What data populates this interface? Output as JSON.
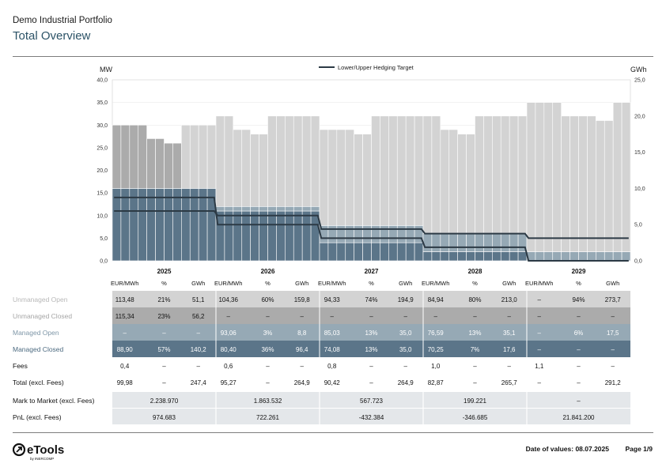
{
  "header": {
    "subtitle": "Demo Industrial Portfolio",
    "title": "Total Overview"
  },
  "footer": {
    "date": "Date of values: 08.07.2025",
    "page": "Page 1/9",
    "logo_text": "eTools",
    "logo_sub": "by INERCOMP"
  },
  "colors": {
    "unmanaged_open": "#d3d3d3",
    "unmanaged_closed": "#ababab",
    "managed_open": "#96a9b5",
    "managed_closed": "#5b7589",
    "hedge_line": "#2c3a45",
    "title": "#2c5367"
  },
  "chart_data": {
    "type": "bar",
    "stacked": true,
    "title": "",
    "ylabel_left": "MW",
    "ylabel_right": "GWh",
    "ylim_left": [
      0,
      40
    ],
    "ylim_right": [
      0,
      25
    ],
    "yticks_left": [
      "0,0",
      "5,0",
      "10,0",
      "15,0",
      "20,0",
      "25,0",
      "30,0",
      "35,0",
      "40,0"
    ],
    "yticks_right": [
      "0,0",
      "5,0",
      "10,0",
      "15,0",
      "20,0",
      "25,0"
    ],
    "legend": {
      "label": "Lower/Upper Hedging Target",
      "placement": "top-center"
    },
    "years": [
      "2025",
      "2026",
      "2027",
      "2028",
      "2029"
    ],
    "months_per_year": 12,
    "series": [
      {
        "name": "Managed Closed",
        "values": [
          16,
          16,
          16,
          16,
          16,
          16,
          16,
          16,
          16,
          16,
          16,
          16,
          11,
          11,
          11,
          11,
          11,
          11,
          11,
          11,
          11,
          11,
          11,
          11,
          4,
          4,
          4,
          4,
          4,
          4,
          4,
          4,
          4,
          4,
          4,
          4,
          2,
          2,
          2,
          2,
          2,
          2,
          2,
          2,
          2,
          2,
          2,
          2,
          0,
          0,
          0,
          0,
          0,
          0,
          0,
          0,
          0,
          0,
          0,
          0
        ]
      },
      {
        "name": "Managed Open",
        "values": [
          0,
          0,
          0,
          0,
          0,
          0,
          0,
          0,
          0,
          0,
          0,
          0,
          1,
          1,
          1,
          1,
          1,
          1,
          1,
          1,
          1,
          1,
          1,
          1,
          3.8,
          3.8,
          3.8,
          3.8,
          3.8,
          3.8,
          3.8,
          3.8,
          3.8,
          3.8,
          3.8,
          3.8,
          4,
          4,
          4,
          4,
          4,
          4,
          4,
          4,
          4,
          4,
          4,
          4,
          2,
          2,
          2,
          2,
          2,
          2,
          2,
          2,
          2,
          2,
          2,
          2
        ]
      },
      {
        "name": "Unmanaged Closed",
        "values": [
          14,
          14,
          14,
          14,
          11,
          11,
          10,
          10,
          0,
          0,
          0,
          0,
          0,
          0,
          0,
          0,
          0,
          0,
          0,
          0,
          0,
          0,
          0,
          0,
          0,
          0,
          0,
          0,
          0,
          0,
          0,
          0,
          0,
          0,
          0,
          0,
          0,
          0,
          0,
          0,
          0,
          0,
          0,
          0,
          0,
          0,
          0,
          0,
          0,
          0,
          0,
          0,
          0,
          0,
          0,
          0,
          0,
          0,
          0,
          0
        ]
      },
      {
        "name": "Unmanaged Open",
        "values": [
          0,
          0,
          0,
          0,
          0,
          0,
          0,
          0,
          14,
          14,
          14,
          14,
          20,
          20,
          17,
          17,
          16,
          16,
          20,
          20,
          20,
          20,
          20,
          20,
          21.2,
          21.2,
          21.2,
          21.2,
          20.2,
          20.2,
          24.2,
          24.2,
          24.2,
          24.2,
          24.2,
          24.2,
          26,
          26,
          23,
          23,
          22,
          22,
          26,
          26,
          26,
          26,
          26,
          26,
          33,
          33,
          33,
          33,
          30,
          30,
          30,
          30,
          29,
          29,
          33,
          33
        ]
      }
    ],
    "hedge_upper": [
      11,
      11,
      11,
      11,
      11,
      11,
      11,
      11,
      11,
      11,
      11,
      11,
      10,
      10,
      10,
      10,
      10,
      10,
      10,
      10,
      10,
      10,
      10,
      10,
      7,
      7,
      7,
      7,
      7,
      7,
      7,
      7,
      7,
      7,
      7,
      7,
      6,
      6,
      6,
      6,
      6,
      6,
      6,
      6,
      6,
      6,
      6,
      6,
      5,
      5,
      5,
      5,
      5,
      5,
      5,
      5,
      5,
      5,
      5,
      5
    ],
    "hedge_lower": [
      14,
      14,
      14,
      14,
      14,
      14,
      14,
      14,
      14,
      14,
      14,
      14,
      8,
      8,
      8,
      8,
      8,
      8,
      8,
      8,
      8,
      8,
      8,
      8,
      5,
      5,
      5,
      5,
      5,
      5,
      5,
      5,
      5,
      5,
      5,
      5,
      3,
      3,
      3,
      3,
      3,
      3,
      3,
      3,
      3,
      3,
      3,
      3,
      0,
      0,
      0,
      0,
      0,
      0,
      0,
      0,
      0,
      0,
      0,
      0
    ]
  },
  "table": {
    "sub_headers": [
      "EUR/MWh",
      "%",
      "GWh"
    ],
    "rows": [
      {
        "label": "Unmanaged Open",
        "kind": "unmanaged_open",
        "cells": [
          [
            "113,48",
            "21%",
            "51,1"
          ],
          [
            "104,36",
            "60%",
            "159,8"
          ],
          [
            "94,33",
            "74%",
            "194,9"
          ],
          [
            "84,94",
            "80%",
            "213,0"
          ],
          [
            "–",
            "94%",
            "273,7"
          ]
        ]
      },
      {
        "label": "Unmanaged Closed",
        "kind": "unmanaged_closed",
        "cells": [
          [
            "115,34",
            "23%",
            "56,2"
          ],
          [
            "–",
            "–",
            "–"
          ],
          [
            "–",
            "–",
            "–"
          ],
          [
            "–",
            "–",
            "–"
          ],
          [
            "–",
            "–",
            "–"
          ]
        ]
      },
      {
        "label": "Managed Open",
        "kind": "managed_open",
        "cells": [
          [
            "–",
            "–",
            "–"
          ],
          [
            "93,06",
            "3%",
            "8,8"
          ],
          [
            "85,03",
            "13%",
            "35,0"
          ],
          [
            "76,59",
            "13%",
            "35,1"
          ],
          [
            "–",
            "6%",
            "17,5"
          ]
        ]
      },
      {
        "label": "Managed Closed",
        "kind": "managed_closed",
        "cells": [
          [
            "88,90",
            "57%",
            "140,2"
          ],
          [
            "80,40",
            "36%",
            "96,4"
          ],
          [
            "74,08",
            "13%",
            "35,0"
          ],
          [
            "70,25",
            "7%",
            "17,6"
          ],
          [
            "–",
            "–",
            "–"
          ]
        ]
      },
      {
        "label": "Fees",
        "kind": "fees",
        "cells": [
          [
            "0,4",
            "–",
            "–"
          ],
          [
            "0,6",
            "–",
            "–"
          ],
          [
            "0,8",
            "–",
            "–"
          ],
          [
            "1,0",
            "–",
            "–"
          ],
          [
            "1,1",
            "–",
            "–"
          ]
        ]
      },
      {
        "label": "Total (excl. Fees)",
        "kind": "total",
        "cells": [
          [
            "99,98",
            "–",
            "247,4"
          ],
          [
            "95,27",
            "–",
            "264,9"
          ],
          [
            "90,42",
            "–",
            "264,9"
          ],
          [
            "82,87",
            "–",
            "265,7"
          ],
          [
            "–",
            "–",
            "291,2"
          ]
        ]
      }
    ],
    "summary": [
      {
        "label": "Mark to Market (excl. Fees)",
        "values": [
          "2.238.970",
          "1.863.532",
          "567.723",
          "199.221",
          "–"
        ]
      },
      {
        "label": "PnL (excl. Fees)",
        "values": [
          "974.683",
          "722.261",
          "-432.384",
          "-346.685",
          "21.841.200"
        ]
      }
    ]
  }
}
